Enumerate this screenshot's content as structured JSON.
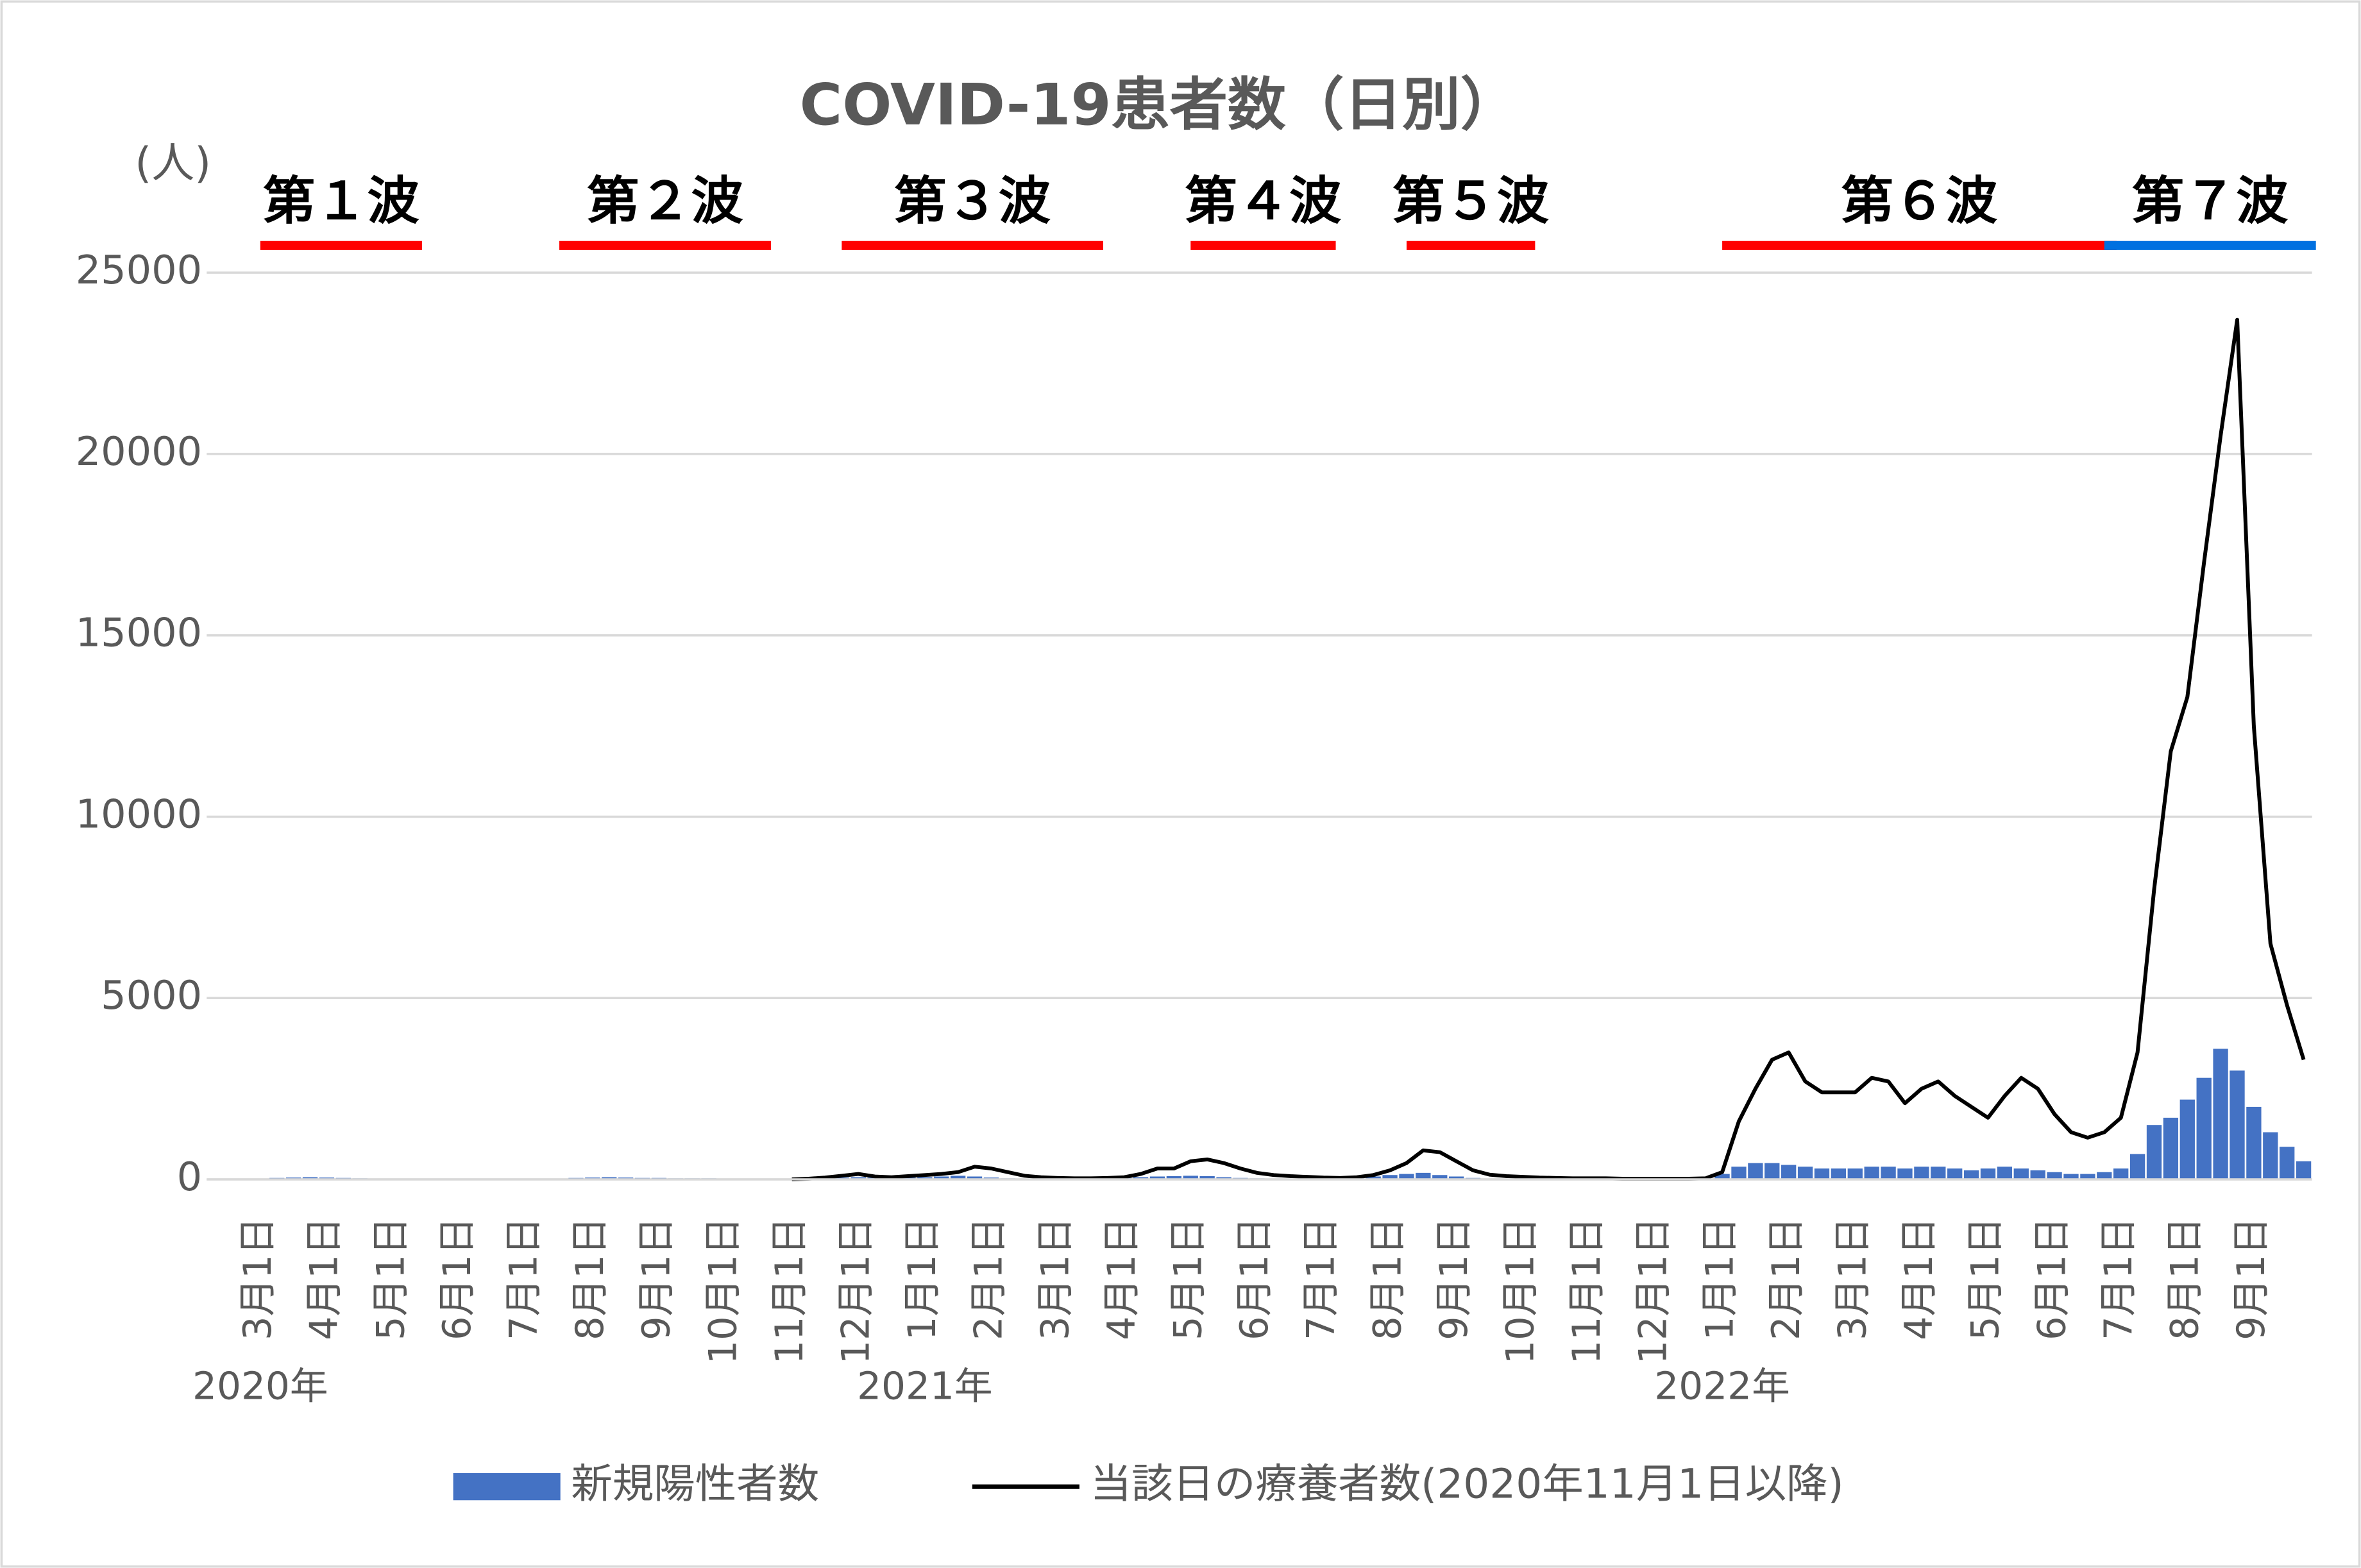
{
  "chart_data": {
    "type": "bar-line",
    "title": "COVID-19患者数（日別）",
    "y_label": "(人)",
    "categories": [
      "3月1日",
      null,
      null,
      null,
      "4月1日",
      null,
      null,
      null,
      "5月1日",
      null,
      null,
      null,
      "6月1日",
      null,
      null,
      null,
      "7月1日",
      null,
      null,
      null,
      "8月1日",
      null,
      null,
      null,
      "9月1日",
      null,
      null,
      null,
      "10月1日",
      null,
      null,
      null,
      "11月1日",
      null,
      null,
      null,
      "12月1日",
      null,
      null,
      null,
      "1月1日",
      null,
      null,
      null,
      "2月1日",
      null,
      null,
      null,
      "3月1日",
      null,
      null,
      null,
      "4月1日",
      null,
      null,
      null,
      "5月1日",
      null,
      null,
      null,
      "6月1日",
      null,
      null,
      null,
      "7月1日",
      null,
      null,
      null,
      "8月1日",
      null,
      null,
      null,
      "9月1日",
      null,
      null,
      null,
      "10月1日",
      null,
      null,
      null,
      "11月1日",
      null,
      null,
      null,
      "12月1日",
      null,
      null,
      null,
      "1月1日",
      null,
      null,
      null,
      "2月1日",
      null,
      null,
      null,
      "3月1日",
      null,
      null,
      null,
      "4月1日",
      null,
      null,
      null,
      "5月1日",
      null,
      null,
      null,
      "6月1日",
      null,
      null,
      null,
      "7月1日",
      null,
      null,
      null,
      "8月1日",
      null,
      null,
      null,
      "9月1日",
      null,
      null,
      null
    ],
    "year_labels": [
      "2020年",
      "2021年",
      "2022年"
    ],
    "series": [
      {
        "name": "新規陽性者数",
        "kind": "bar",
        "color": "#4472c4",
        "values": [
          20,
          40,
          50,
          60,
          50,
          40,
          30,
          20,
          10,
          5,
          0,
          0,
          0,
          0,
          0,
          0,
          0,
          0,
          20,
          40,
          50,
          60,
          50,
          40,
          40,
          30,
          30,
          30,
          20,
          20,
          20,
          20,
          20,
          30,
          40,
          50,
          60,
          50,
          40,
          50,
          60,
          80,
          100,
          80,
          50,
          30,
          20,
          20,
          20,
          20,
          20,
          30,
          40,
          60,
          80,
          90,
          100,
          90,
          60,
          40,
          30,
          20,
          20,
          20,
          20,
          30,
          50,
          80,
          120,
          150,
          180,
          120,
          80,
          40,
          20,
          10,
          10,
          10,
          10,
          10,
          10,
          10,
          10,
          10,
          10,
          10,
          10,
          20,
          150,
          350,
          450,
          450,
          400,
          350,
          300,
          300,
          300,
          350,
          350,
          300,
          350,
          350,
          300,
          250,
          300,
          350,
          300,
          250,
          200,
          150,
          150,
          200,
          300,
          700,
          1500,
          1700,
          2200,
          2800,
          3600,
          3000,
          2000,
          1300,
          900,
          500
        ]
      },
      {
        "name": "当該日の療養者数(2020年11月1日以降)",
        "kind": "line",
        "color": "#000000",
        "values": [
          null,
          null,
          null,
          null,
          null,
          null,
          null,
          null,
          null,
          null,
          null,
          null,
          null,
          null,
          null,
          null,
          null,
          null,
          null,
          null,
          null,
          null,
          null,
          null,
          null,
          null,
          null,
          null,
          null,
          null,
          null,
          null,
          0,
          20,
          50,
          100,
          150,
          80,
          60,
          90,
          120,
          150,
          200,
          350,
          300,
          200,
          100,
          60,
          40,
          30,
          30,
          40,
          60,
          150,
          300,
          300,
          500,
          550,
          450,
          300,
          180,
          120,
          90,
          70,
          50,
          40,
          60,
          120,
          250,
          450,
          800,
          750,
          500,
          250,
          130,
          90,
          70,
          50,
          40,
          30,
          30,
          30,
          20,
          20,
          20,
          20,
          20,
          30,
          200,
          1600,
          2500,
          3300,
          3500,
          2700,
          2400,
          2400,
          2400,
          2800,
          2700,
          2100,
          2500,
          2700,
          2300,
          2000,
          1700,
          2300,
          2800,
          2500,
          1800,
          1300,
          1150,
          1300,
          1700,
          3500,
          8000,
          11800,
          13300,
          17000,
          20500,
          23700,
          12500,
          6500,
          4800,
          3300
        ]
      }
    ],
    "waves": [
      {
        "label": "第１波",
        "start": 0,
        "end": 9,
        "color": "#ff0000"
      },
      {
        "label": "第２波",
        "start": 18,
        "end": 30,
        "color": "#ff0000"
      },
      {
        "label": "第３波",
        "start": 35,
        "end": 50,
        "color": "#ff0000"
      },
      {
        "label": "第４波",
        "start": 56,
        "end": 64,
        "color": "#ff0000"
      },
      {
        "label": "第５波",
        "start": 69,
        "end": 76,
        "color": "#ff0000"
      },
      {
        "label": "第６波",
        "start": 88,
        "end": 111,
        "color": "#ff0000"
      },
      {
        "label": "第７波",
        "start": 111,
        "end": 123,
        "color": "#0070e0"
      }
    ],
    "ylim": [
      0,
      25000
    ],
    "yticks": [
      0,
      5000,
      10000,
      15000,
      20000,
      25000
    ],
    "grid": true
  }
}
